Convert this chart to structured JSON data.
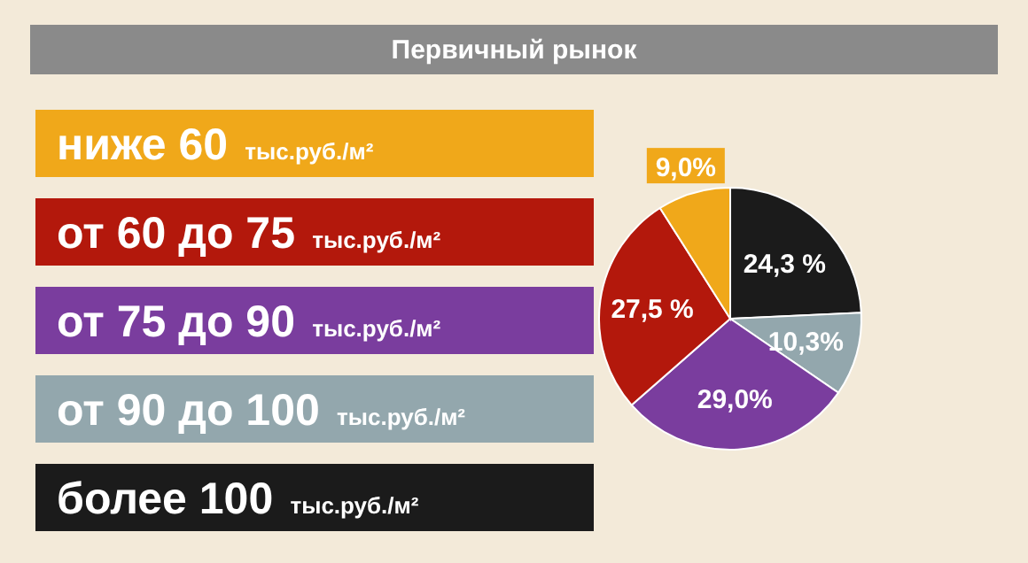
{
  "chart_data": {
    "type": "pie",
    "title": "Первичный рынок",
    "categories": [
      "ниже 60 тыс.руб./м²",
      "от 60 до 75 тыс.руб./м²",
      "от 75 до 90 тыс.руб./м²",
      "от 90 до 100 тыс.руб./м²",
      "более 100 тыс.руб./м²"
    ],
    "values": [
      9.0,
      27.5,
      29.0,
      10.3,
      24.3
    ],
    "colors": [
      "#f0a81a",
      "#b3180c",
      "#7a3d9e",
      "#93a7ad",
      "#1b1b1b"
    ],
    "value_labels": [
      "9,0%",
      "27,5 %",
      "29,0%",
      "10,3%",
      "24,3 %"
    ],
    "legend": "left"
  }
}
